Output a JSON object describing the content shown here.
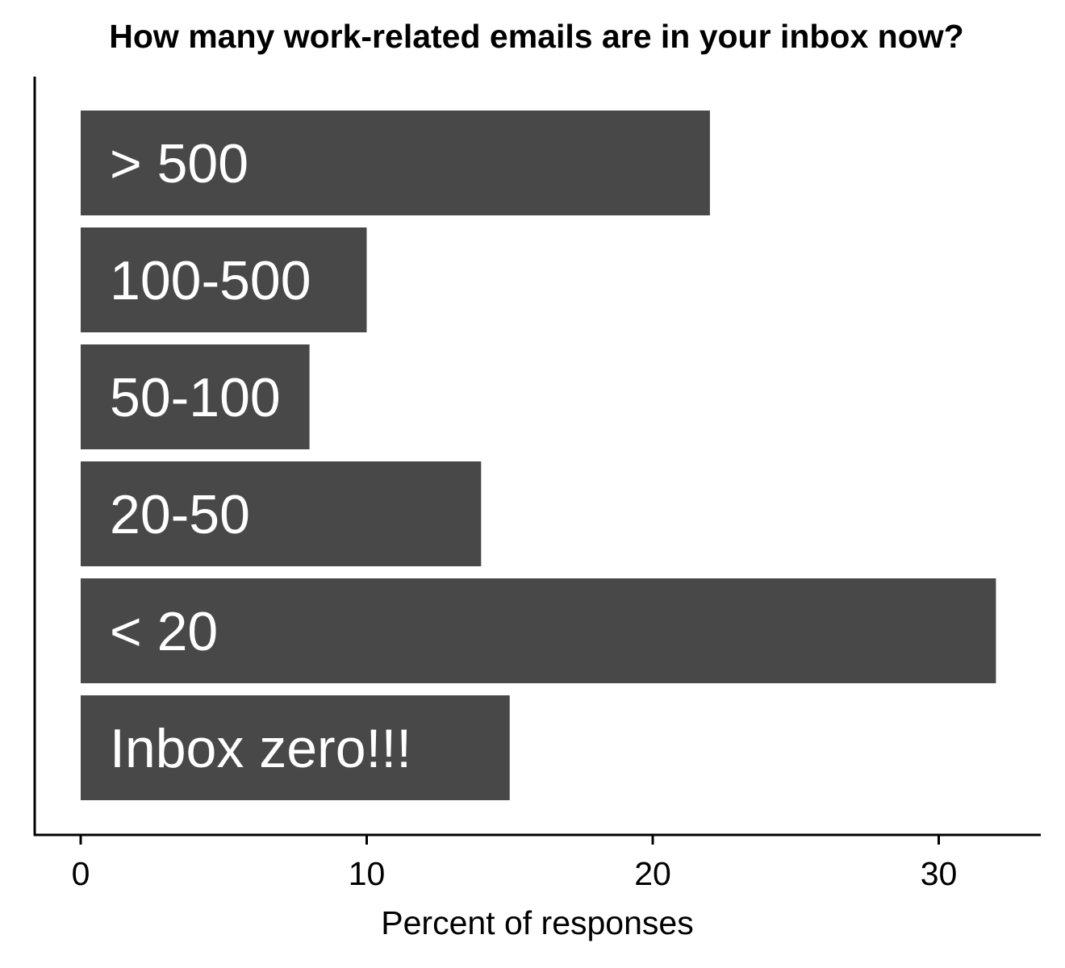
{
  "chart_data": {
    "type": "bar",
    "orientation": "horizontal",
    "title": "How many work-related emails are in your inbox now?",
    "xlabel": "Percent of responses",
    "ylabel": "",
    "categories": [
      "> 500",
      "100-500",
      "50-100",
      "20-50",
      "< 20",
      "Inbox zero!!!"
    ],
    "values": [
      22,
      10,
      8,
      14,
      32,
      15
    ],
    "xlim": [
      0,
      33
    ],
    "xticks": [
      0,
      10,
      20,
      30
    ],
    "xtick_labels": [
      "0",
      "10",
      "20",
      "30"
    ],
    "bar_labels_inside": true,
    "grid": false,
    "legend": "none",
    "colors": {
      "bar": "#484848",
      "bar_label": "#ffffff",
      "axis": "#000000",
      "background": "#ffffff"
    }
  }
}
